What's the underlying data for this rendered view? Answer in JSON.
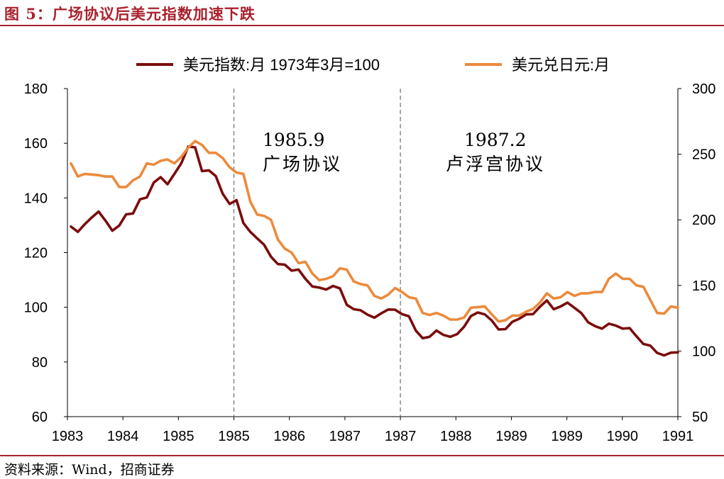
{
  "figure": {
    "title": "图 5：广场协议后美元指数加速下跌",
    "source": "资料来源：Wind，招商证券"
  },
  "chart_data": {
    "type": "line",
    "x_tick_labels": [
      "1983",
      "1984",
      "1985",
      "1985",
      "1986",
      "1987",
      "1987",
      "1988",
      "1989",
      "1989",
      "1990",
      "1991"
    ],
    "y_left": {
      "ticks": [
        60,
        80,
        100,
        120,
        140,
        160,
        180
      ],
      "ylim": [
        60,
        180
      ]
    },
    "y_right": {
      "ticks": [
        50,
        100,
        150,
        200,
        250,
        300
      ],
      "ylim": [
        50,
        300
      ]
    },
    "legend_position": "top",
    "grid": false,
    "series": [
      {
        "name": "美元指数:月 1973年3月=100",
        "axis": "left",
        "color": "#7b0c0c",
        "values": [
          129.5,
          127.6,
          130.4,
          132.8,
          135,
          131.7,
          128,
          129.9,
          134,
          134.3,
          139.5,
          140.2,
          145.6,
          147.6,
          145,
          148.8,
          152.7,
          158.8,
          158.5,
          149.8,
          150.1,
          148,
          141.5,
          137.8,
          139.2,
          130.8,
          127.6,
          125.2,
          122.9,
          118.5,
          115.8,
          115.6,
          113.4,
          113.8,
          110.4,
          107.6,
          107.2,
          106.5,
          107.8,
          106.9,
          100.9,
          99.3,
          98.9,
          97.3,
          96.2,
          97.8,
          99.2,
          99.1,
          97.5,
          96.7,
          91.5,
          88.7,
          89.2,
          91.5,
          89.9,
          89.2,
          90.2,
          92.9,
          96.8,
          98.1,
          97.4,
          95.2,
          91.9,
          92,
          94.7,
          95.8,
          97.4,
          97.5,
          100.2,
          102.5,
          99.3,
          100.3,
          101.7,
          99.8,
          97.9,
          94.5,
          93.1,
          92.2,
          94,
          93.3,
          92.2,
          92.4,
          89.4,
          86.6,
          86,
          83.3,
          82.4,
          83.4,
          83.5
        ]
      },
      {
        "name": "美元兑日元:月",
        "axis": "right",
        "color": "#ec8a3c",
        "values": [
          243,
          233,
          235,
          234.5,
          234,
          233,
          233,
          225,
          225,
          230,
          233,
          243,
          242,
          245,
          246,
          243,
          248,
          255,
          260,
          257,
          251,
          251,
          247,
          240,
          236,
          235,
          214,
          204,
          203,
          200,
          185,
          178,
          175,
          167,
          168,
          159,
          154,
          155,
          157,
          163,
          162,
          153,
          151,
          150,
          142,
          140,
          143,
          148,
          145,
          141,
          140,
          129,
          127.5,
          129,
          127,
          124,
          124,
          125.5,
          133,
          133.5,
          134,
          128,
          122.5,
          123.5,
          127,
          127,
          130,
          132,
          137,
          144,
          140,
          141,
          145,
          142,
          144,
          144,
          145,
          145,
          155,
          159,
          155,
          155,
          150,
          149,
          139,
          129,
          128.5,
          134,
          133
        ]
      }
    ]
  }
}
